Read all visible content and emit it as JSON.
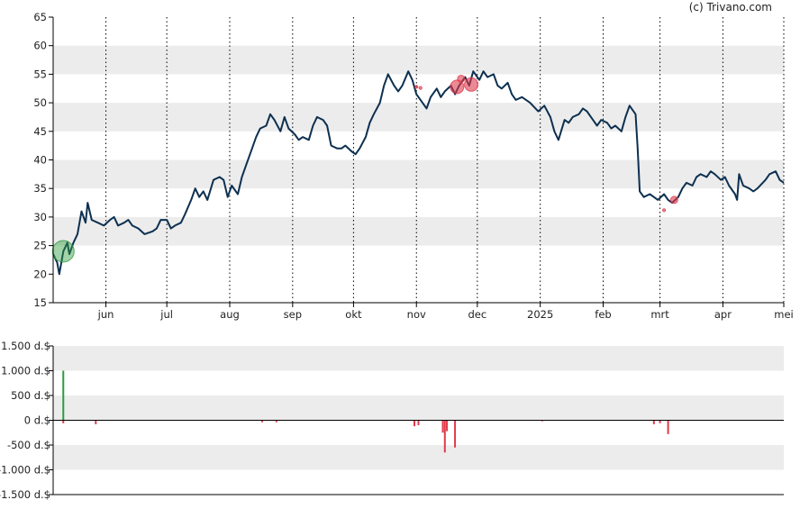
{
  "credit": "(c) Trivano.com",
  "colors": {
    "band": "#ececec",
    "price_line": "#0d3050",
    "buy": "#2e9b3d",
    "sell": "#e03a4c",
    "axis": "#000000",
    "month_grid": "#000000"
  },
  "chart_data": [
    {
      "type": "line",
      "title": "",
      "xlabel": "",
      "ylabel": "",
      "ylim": [
        15,
        65
      ],
      "yticks": [
        65,
        60,
        55,
        50,
        45,
        40,
        35,
        30,
        25,
        20,
        15
      ],
      "x_range": [
        "2024-05-06",
        "2025-05-01"
      ],
      "month_ticks": [
        {
          "label": "jun",
          "date": "2024-06-01"
        },
        {
          "label": "jul",
          "date": "2024-07-01"
        },
        {
          "label": "aug",
          "date": "2024-08-01"
        },
        {
          "label": "sep",
          "date": "2024-09-01"
        },
        {
          "label": "okt",
          "date": "2024-10-01"
        },
        {
          "label": "nov",
          "date": "2024-11-01"
        },
        {
          "label": "dec",
          "date": "2024-12-01"
        },
        {
          "label": "2025",
          "date": "2025-01-01"
        },
        {
          "label": "feb",
          "date": "2025-02-01"
        },
        {
          "label": "mrt",
          "date": "2025-03-01"
        },
        {
          "label": "apr",
          "date": "2025-04-01"
        },
        {
          "label": "mei",
          "date": "2025-05-01"
        }
      ],
      "series": [
        {
          "values": [
            [
              "2024-05-06",
              23.5
            ],
            [
              "2024-05-08",
              22.0
            ],
            [
              "2024-05-09",
              20.0
            ],
            [
              "2024-05-11",
              24.0
            ],
            [
              "2024-05-13",
              25.5
            ],
            [
              "2024-05-14",
              23.5
            ],
            [
              "2024-05-16",
              25.5
            ],
            [
              "2024-05-18",
              27.0
            ],
            [
              "2024-05-20",
              31.0
            ],
            [
              "2024-05-22",
              29.0
            ],
            [
              "2024-05-23",
              32.5
            ],
            [
              "2024-05-25",
              29.5
            ],
            [
              "2024-05-28",
              29.0
            ],
            [
              "2024-05-31",
              28.5
            ],
            [
              "2024-06-03",
              29.5
            ],
            [
              "2024-06-05",
              30.0
            ],
            [
              "2024-06-07",
              28.5
            ],
            [
              "2024-06-10",
              29.0
            ],
            [
              "2024-06-12",
              29.5
            ],
            [
              "2024-06-14",
              28.5
            ],
            [
              "2024-06-17",
              28.0
            ],
            [
              "2024-06-20",
              27.0
            ],
            [
              "2024-06-24",
              27.5
            ],
            [
              "2024-06-26",
              28.0
            ],
            [
              "2024-06-28",
              29.5
            ],
            [
              "2024-07-01",
              29.5
            ],
            [
              "2024-07-03",
              28.0
            ],
            [
              "2024-07-05",
              28.5
            ],
            [
              "2024-07-08",
              29.0
            ],
            [
              "2024-07-10",
              30.5
            ],
            [
              "2024-07-13",
              33.0
            ],
            [
              "2024-07-15",
              35.0
            ],
            [
              "2024-07-17",
              33.5
            ],
            [
              "2024-07-19",
              34.5
            ],
            [
              "2024-07-21",
              33.0
            ],
            [
              "2024-07-24",
              36.5
            ],
            [
              "2024-07-27",
              37.0
            ],
            [
              "2024-07-29",
              36.5
            ],
            [
              "2024-07-31",
              33.5
            ],
            [
              "2024-08-02",
              35.5
            ],
            [
              "2024-08-05",
              34.0
            ],
            [
              "2024-08-07",
              37.0
            ],
            [
              "2024-08-09",
              39.0
            ],
            [
              "2024-08-12",
              42.0
            ],
            [
              "2024-08-14",
              44.0
            ],
            [
              "2024-08-16",
              45.5
            ],
            [
              "2024-08-19",
              46.0
            ],
            [
              "2024-08-21",
              48.0
            ],
            [
              "2024-08-23",
              47.0
            ],
            [
              "2024-08-26",
              45.0
            ],
            [
              "2024-08-28",
              47.5
            ],
            [
              "2024-08-30",
              45.5
            ],
            [
              "2024-09-02",
              44.5
            ],
            [
              "2024-09-04",
              43.5
            ],
            [
              "2024-09-06",
              44.0
            ],
            [
              "2024-09-09",
              43.5
            ],
            [
              "2024-09-11",
              46.0
            ],
            [
              "2024-09-13",
              47.5
            ],
            [
              "2024-09-16",
              47.0
            ],
            [
              "2024-09-18",
              46.0
            ],
            [
              "2024-09-20",
              42.5
            ],
            [
              "2024-09-23",
              42.0
            ],
            [
              "2024-09-25",
              42.0
            ],
            [
              "2024-09-27",
              42.5
            ],
            [
              "2024-09-30",
              41.5
            ],
            [
              "2024-10-02",
              41.0
            ],
            [
              "2024-10-04",
              42.0
            ],
            [
              "2024-10-07",
              44.0
            ],
            [
              "2024-10-09",
              46.5
            ],
            [
              "2024-10-11",
              48.0
            ],
            [
              "2024-10-14",
              50.0
            ],
            [
              "2024-10-16",
              53.0
            ],
            [
              "2024-10-18",
              55.0
            ],
            [
              "2024-10-21",
              53.0
            ],
            [
              "2024-10-23",
              52.0
            ],
            [
              "2024-10-25",
              53.0
            ],
            [
              "2024-10-28",
              55.5
            ],
            [
              "2024-10-30",
              54.0
            ],
            [
              "2024-11-01",
              51.5
            ],
            [
              "2024-11-04",
              50.0
            ],
            [
              "2024-11-06",
              49.0
            ],
            [
              "2024-11-08",
              51.0
            ],
            [
              "2024-11-11",
              52.5
            ],
            [
              "2024-11-13",
              51.0
            ],
            [
              "2024-11-15",
              52.0
            ],
            [
              "2024-11-18",
              53.0
            ],
            [
              "2024-11-20",
              51.5
            ],
            [
              "2024-11-22",
              53.0
            ],
            [
              "2024-11-25",
              54.5
            ],
            [
              "2024-11-27",
              53.0
            ],
            [
              "2024-11-29",
              55.5
            ],
            [
              "2024-12-02",
              54.0
            ],
            [
              "2024-12-04",
              55.5
            ],
            [
              "2024-12-06",
              54.5
            ],
            [
              "2024-12-09",
              55.0
            ],
            [
              "2024-12-11",
              53.0
            ],
            [
              "2024-12-13",
              52.5
            ],
            [
              "2024-12-16",
              53.5
            ],
            [
              "2024-12-18",
              51.5
            ],
            [
              "2024-12-20",
              50.5
            ],
            [
              "2024-12-23",
              51.0
            ],
            [
              "2024-12-27",
              50.0
            ],
            [
              "2024-12-31",
              48.5
            ],
            [
              "2025-01-03",
              49.5
            ],
            [
              "2025-01-06",
              47.5
            ],
            [
              "2025-01-08",
              45.0
            ],
            [
              "2025-01-10",
              43.5
            ],
            [
              "2025-01-13",
              47.0
            ],
            [
              "2025-01-15",
              46.5
            ],
            [
              "2025-01-17",
              47.5
            ],
            [
              "2025-01-20",
              48.0
            ],
            [
              "2025-01-22",
              49.0
            ],
            [
              "2025-01-24",
              48.5
            ],
            [
              "2025-01-27",
              47.0
            ],
            [
              "2025-01-29",
              46.0
            ],
            [
              "2025-01-31",
              47.0
            ],
            [
              "2025-02-03",
              46.5
            ],
            [
              "2025-02-05",
              45.5
            ],
            [
              "2025-02-07",
              46.0
            ],
            [
              "2025-02-10",
              45.0
            ],
            [
              "2025-02-12",
              47.5
            ],
            [
              "2025-02-14",
              49.5
            ],
            [
              "2025-02-17",
              48.0
            ],
            [
              "2025-02-18",
              42.0
            ],
            [
              "2025-02-19",
              34.5
            ],
            [
              "2025-02-21",
              33.5
            ],
            [
              "2025-02-24",
              34.0
            ],
            [
              "2025-02-26",
              33.5
            ],
            [
              "2025-02-28",
              33.0
            ],
            [
              "2025-03-03",
              34.0
            ],
            [
              "2025-03-05",
              33.0
            ],
            [
              "2025-03-07",
              32.5
            ],
            [
              "2025-03-10",
              33.5
            ],
            [
              "2025-03-12",
              35.0
            ],
            [
              "2025-03-14",
              36.0
            ],
            [
              "2025-03-17",
              35.5
            ],
            [
              "2025-03-19",
              37.0
            ],
            [
              "2025-03-21",
              37.5
            ],
            [
              "2025-03-24",
              37.0
            ],
            [
              "2025-03-26",
              38.0
            ],
            [
              "2025-03-28",
              37.5
            ],
            [
              "2025-03-31",
              36.5
            ],
            [
              "2025-04-02",
              37.0
            ],
            [
              "2025-04-04",
              35.5
            ],
            [
              "2025-04-07",
              34.0
            ],
            [
              "2025-04-08",
              33.0
            ],
            [
              "2025-04-09",
              37.5
            ],
            [
              "2025-04-11",
              35.5
            ],
            [
              "2025-04-14",
              35.0
            ],
            [
              "2025-04-16",
              34.5
            ],
            [
              "2025-04-18",
              35.0
            ],
            [
              "2025-04-22",
              36.5
            ],
            [
              "2025-04-24",
              37.5
            ],
            [
              "2025-04-27",
              38.0
            ],
            [
              "2025-04-29",
              36.5
            ],
            [
              "2025-05-01",
              36.0
            ]
          ]
        }
      ],
      "markers": [
        {
          "type": "buy",
          "date": "2024-05-11",
          "value": 24.0,
          "size": "large"
        },
        {
          "type": "sell",
          "date": "2024-11-21",
          "value": 52.8,
          "size": "medium"
        },
        {
          "type": "sell",
          "date": "2024-11-23",
          "value": 54.2,
          "size": "small"
        },
        {
          "type": "sell",
          "date": "2024-11-28",
          "value": 53.2,
          "size": "medium"
        },
        {
          "type": "sell",
          "date": "2024-11-01",
          "value": 52.8,
          "size": "tiny"
        },
        {
          "type": "sell",
          "date": "2024-11-03",
          "value": 52.6,
          "size": "tiny"
        },
        {
          "type": "sell",
          "date": "2025-03-08",
          "value": 33.0,
          "size": "small"
        },
        {
          "type": "sell",
          "date": "2025-03-03",
          "value": 31.2,
          "size": "tiny"
        }
      ]
    },
    {
      "type": "bar",
      "title": "",
      "ylabel": "",
      "ylim": [
        -1500,
        1500
      ],
      "yticks": [
        {
          "value": 1500,
          "label": "1.500 d.$"
        },
        {
          "value": 1000,
          "label": "1.000 d.$"
        },
        {
          "value": 500,
          "label": "500 d.$"
        },
        {
          "value": 0,
          "label": "0 d.$"
        },
        {
          "value": -500,
          "label": "-500 d.$"
        },
        {
          "value": -1000,
          "label": "-1.000 d.$"
        },
        {
          "value": -1500,
          "label": "-1.500 d.$"
        }
      ],
      "x_range": [
        "2024-05-06",
        "2025-05-01"
      ],
      "series": [
        {
          "values": [
            [
              "2024-05-11",
              1000
            ],
            [
              "2024-05-11",
              -60
            ],
            [
              "2024-05-27",
              -80
            ],
            [
              "2024-08-17",
              -40
            ],
            [
              "2024-08-24",
              -40
            ],
            [
              "2024-10-31",
              -120
            ],
            [
              "2024-11-02",
              -100
            ],
            [
              "2024-11-14",
              -250
            ],
            [
              "2024-11-15",
              -650
            ],
            [
              "2024-11-16",
              -220
            ],
            [
              "2024-11-20",
              -550
            ],
            [
              "2025-01-02",
              -20
            ],
            [
              "2025-02-26",
              -80
            ],
            [
              "2025-03-01",
              -60
            ],
            [
              "2025-03-05",
              -280
            ]
          ]
        }
      ]
    }
  ]
}
